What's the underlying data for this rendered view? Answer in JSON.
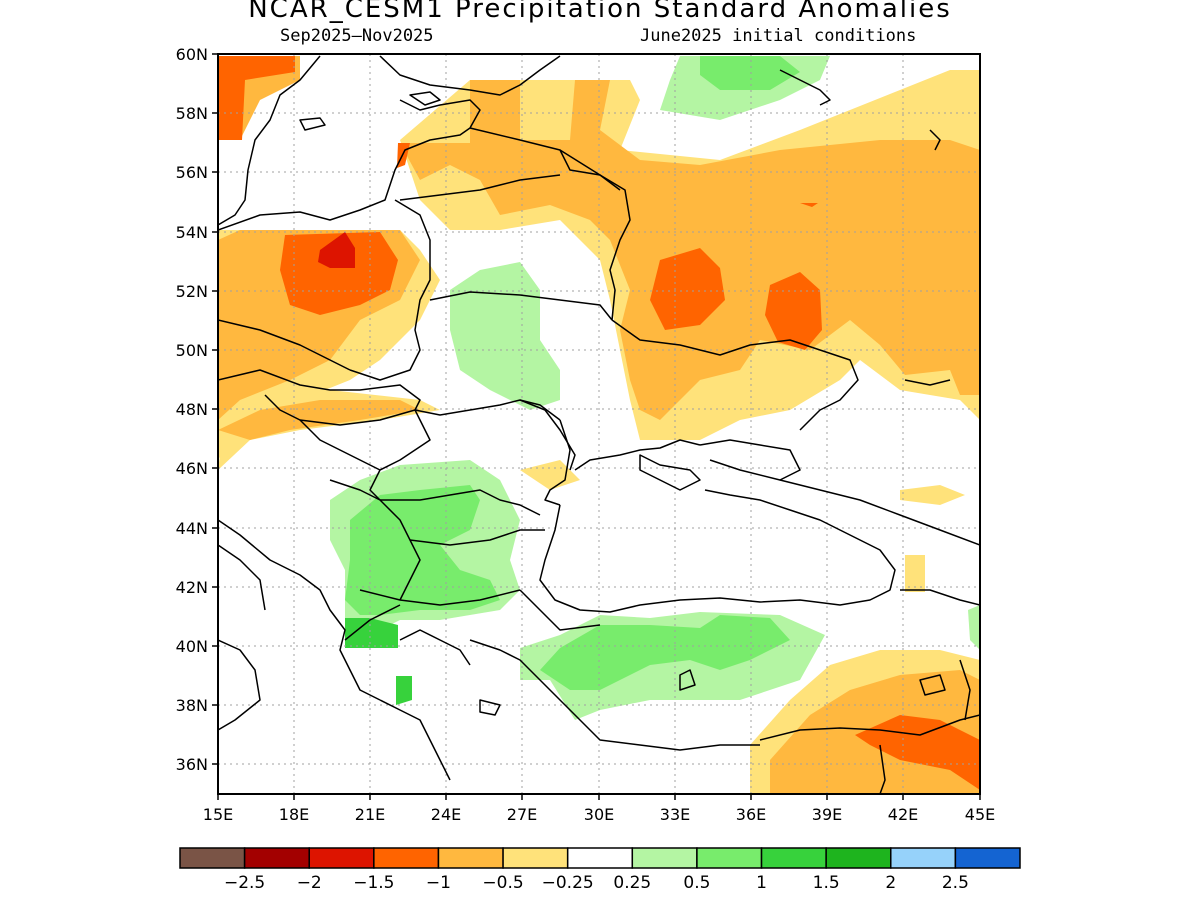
{
  "title": "NCAR_CESM1 Precipitation Standard Anomalies",
  "subtitle_left": "Sep2025–Nov2025",
  "subtitle_right": "June2025 initial conditions",
  "map": {
    "lon_range": [
      15,
      45
    ],
    "lat_range": [
      35,
      60
    ],
    "lon_ticks": [
      "15E",
      "18E",
      "21E",
      "24E",
      "27E",
      "30E",
      "33E",
      "36E",
      "39E",
      "42E",
      "45E"
    ],
    "lat_ticks": [
      "60N",
      "58N",
      "56N",
      "54N",
      "52N",
      "50N",
      "48N",
      "46N",
      "44N",
      "42N",
      "40N",
      "38N",
      "36N"
    ]
  },
  "colorbar": {
    "colors": [
      "#7a5446",
      "#a30000",
      "#dd1400",
      "#ff6400",
      "#ffb83f",
      "#ffe27a",
      "#ffffff",
      "#b4f5a3",
      "#78ec6c",
      "#37d23c",
      "#1eb41e",
      "#96d2fa",
      "#1464d2"
    ],
    "labels": [
      "−2.5",
      "−2",
      "−1.5",
      "−1",
      "−0.5",
      "−0.25",
      "0.25",
      "0.5",
      "1",
      "1.5",
      "2",
      "2.5"
    ]
  },
  "colors": {
    "light_orange": "#ffe27a",
    "orange": "#ffb83f",
    "dark_orange": "#ff6400",
    "red": "#dd1400",
    "light_green": "#b4f5a3",
    "green": "#78ec6c",
    "mid_green": "#37d23c"
  }
}
